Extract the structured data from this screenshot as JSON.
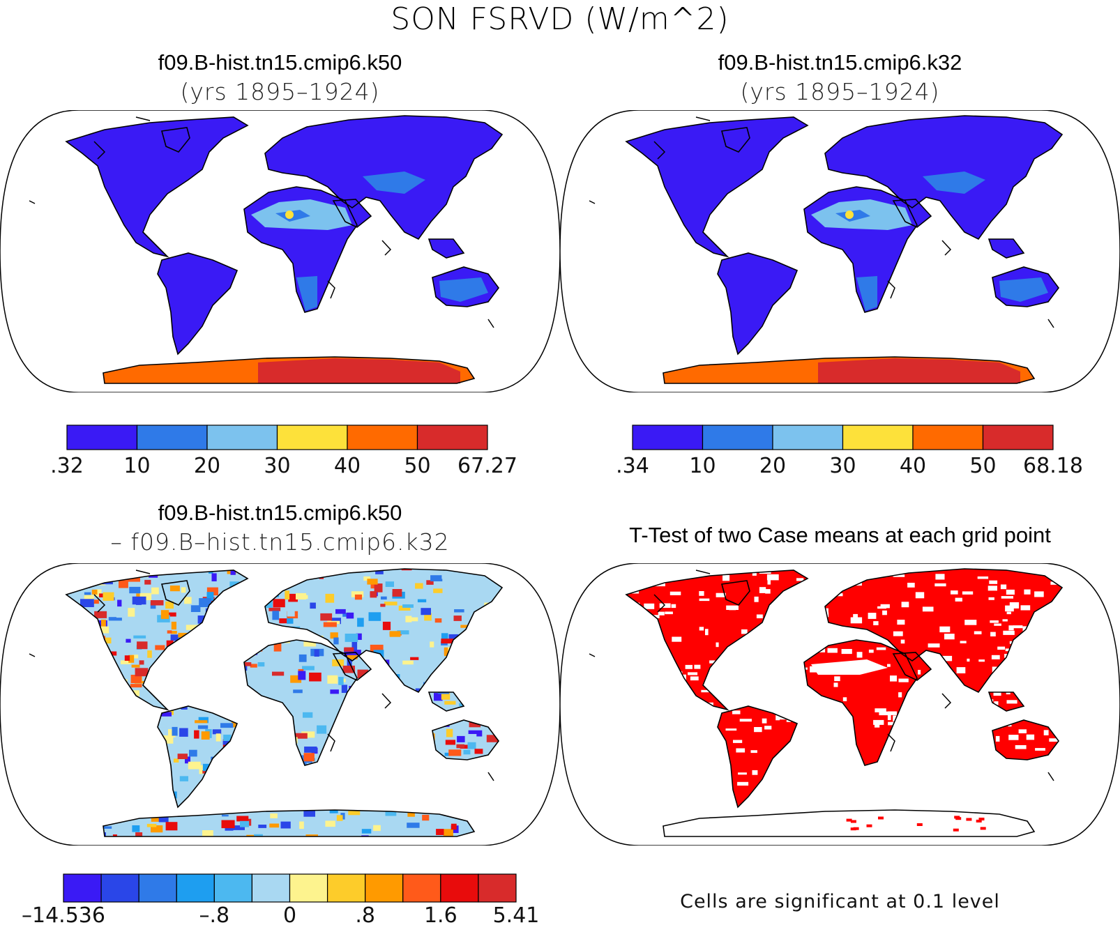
{
  "figure": {
    "title": "SON FSRVD (W/m^2)"
  },
  "panels": [
    {
      "id": "case1",
      "title": "f09.B-hist.tn15.cmip6.k50",
      "subtitle": "(yrs 1895–1924)",
      "colorbar": {
        "colors": [
          "#3a1af5",
          "#2f7ae8",
          "#7cc2ee",
          "#fde13a",
          "#ff6a00",
          "#d82b2b"
        ],
        "tick_labels": [
          ".32",
          "10",
          "20",
          "30",
          "40",
          "50",
          "67.27"
        ]
      }
    },
    {
      "id": "case2",
      "title": "f09.B-hist.tn15.cmip6.k32",
      "subtitle": "(yrs 1895–1924)",
      "colorbar": {
        "colors": [
          "#3a1af5",
          "#2f7ae8",
          "#7cc2ee",
          "#fde13a",
          "#ff6a00",
          "#d82b2b"
        ],
        "tick_labels": [
          ".34",
          "10",
          "20",
          "30",
          "40",
          "50",
          "68.18"
        ]
      }
    },
    {
      "id": "difference",
      "title": "f09.B-hist.tn15.cmip6.k50",
      "subtitle": "– f09.B–hist.tn15.cmip6.k32",
      "colorbar": {
        "colors": [
          "#3a1af5",
          "#2a46e8",
          "#2f7ae8",
          "#1e9ef0",
          "#4cb8f0",
          "#a9d8f2",
          "#fdf38e",
          "#fdcc2a",
          "#ff9a00",
          "#ff5a1a",
          "#e80c0c",
          "#d82b2b"
        ],
        "tick_labels": [
          "–14.536",
          "–.8",
          "0",
          ".8",
          "1.6",
          "5.41"
        ]
      }
    },
    {
      "id": "ttest",
      "title": "T-Test of two Case means at each grid point",
      "footnote": "Cells are significant at 0.1 level",
      "significant_color": "#ff0000"
    }
  ]
}
